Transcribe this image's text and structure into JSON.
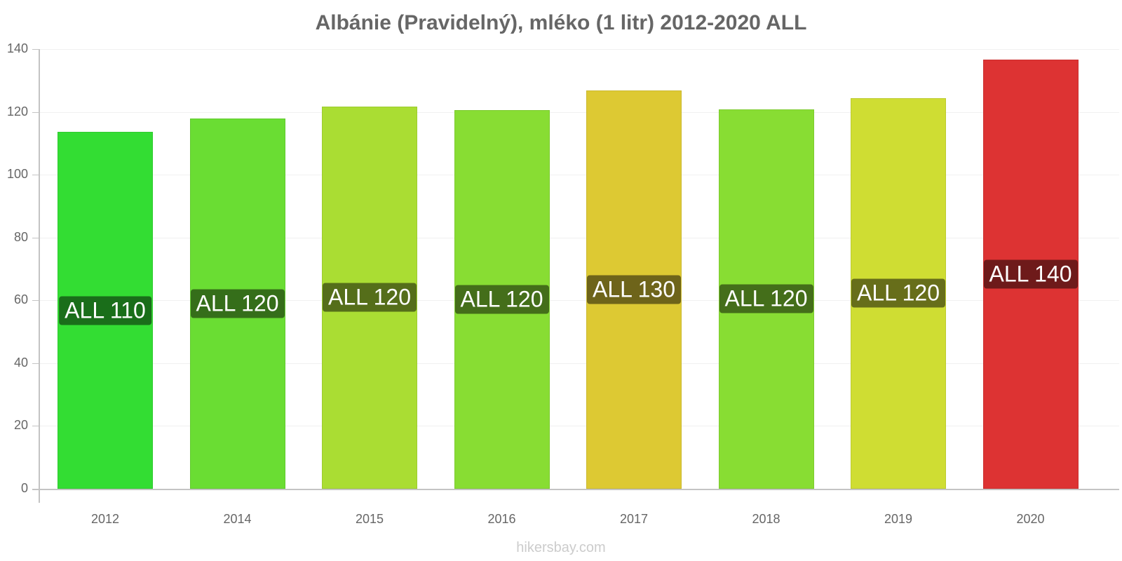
{
  "chart_data": {
    "type": "bar",
    "title": "Albánie (Pravidelný), mléko (1 litr) 2012-2020 ALL",
    "xlabel": "",
    "ylabel": "",
    "categories": [
      "2012",
      "2014",
      "2015",
      "2016",
      "2017",
      "2018",
      "2019",
      "2020"
    ],
    "values": [
      113.6,
      117.9,
      121.7,
      120.6,
      126.8,
      120.8,
      124.4,
      136.6
    ],
    "data_labels": [
      "ALL 110",
      "ALL 120",
      "ALL 120",
      "ALL 120",
      "ALL 130",
      "ALL 120",
      "ALL 120",
      "ALL 140"
    ],
    "bar_colors": [
      "#33dd33",
      "#6add33",
      "#aadd33",
      "#88dd33",
      "#ddc933",
      "#88dd33",
      "#cfdd33",
      "#dd3333"
    ],
    "label_colors": [
      "#1a6e1a",
      "#356e1a",
      "#556e1a",
      "#446e1a",
      "#6e641a",
      "#446e1a",
      "#676e1a",
      "#6e1a1a"
    ],
    "ylim": [
      0,
      140
    ],
    "yticks": [
      0,
      20,
      40,
      60,
      80,
      100,
      120,
      140
    ],
    "grid": true,
    "legend": "none"
  },
  "footer": "hikersbay.com"
}
